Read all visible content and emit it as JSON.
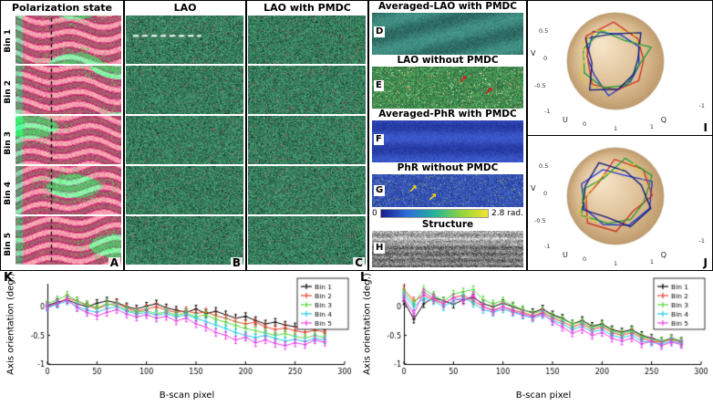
{
  "grid": {
    "columns": [
      {
        "header": "Polarization state",
        "letter": "A"
      },
      {
        "header": "LAO",
        "letter": "B"
      },
      {
        "header": "LAO with PMDC",
        "letter": "C"
      }
    ],
    "row_labels": [
      "Bin 1",
      "Bin 2",
      "Bin 3",
      "Bin 4",
      "Bin 5"
    ]
  },
  "middle": {
    "sections": [
      {
        "title": "Averaged-LAO with PMDC",
        "letter": "D"
      },
      {
        "title": "LAO without PMDC",
        "letter": "E"
      },
      {
        "title": "Averaged-PhR with PMDC",
        "letter": "F"
      },
      {
        "title": "PhR without PMDC",
        "letter": "G"
      }
    ],
    "colorbar": {
      "min_label": "0",
      "max_label": "2.8 rad."
    },
    "structure": {
      "title": "Structure",
      "letter": "H"
    }
  },
  "spheres": {
    "axis": {
      "v_label": "V",
      "u_label": "U",
      "q_label": "Q",
      "v_ticks": [
        "0.5",
        "0",
        "-0.5"
      ],
      "u_ticks": [
        "-1",
        "0",
        "1"
      ],
      "q_ticks": [
        "1",
        "-1"
      ]
    },
    "panels": [
      {
        "letter": "I"
      },
      {
        "letter": "J"
      }
    ]
  },
  "icons": {
    "arrow_ne": "↗"
  },
  "colors": {
    "sphere_fill": "#dcbd93",
    "colorbar": [
      "#1a1a8f",
      "#2e6fd8",
      "#22b39a",
      "#8fd43f",
      "#f2e430"
    ],
    "trajectories": [
      "#1434d0",
      "#cf2a1c",
      "#1e9e2e",
      "#0a1878",
      "#e6cf1e"
    ]
  },
  "chart_data": [
    {
      "type": "line",
      "letter": "K",
      "xlabel": "B-scan pixel",
      "ylabel": "Axis orientation (deg.)",
      "xlim": [
        0,
        300
      ],
      "ylim": [
        -1,
        0.4
      ],
      "xticks": [
        0,
        50,
        100,
        150,
        200,
        250,
        300
      ],
      "yticks": [
        0,
        -0.5,
        -1
      ],
      "legend_position": "top-right",
      "grid": false,
      "x": [
        0,
        10,
        20,
        30,
        40,
        50,
        60,
        70,
        80,
        90,
        100,
        110,
        120,
        130,
        140,
        150,
        160,
        170,
        180,
        190,
        200,
        210,
        220,
        230,
        240,
        250,
        260,
        270,
        280
      ],
      "series": [
        {
          "name": "Bin 1",
          "color": "#000000",
          "values": [
            0.02,
            0.08,
            0.12,
            0.05,
            0.0,
            0.06,
            0.1,
            0.07,
            0.0,
            -0.04,
            0.01,
            0.05,
            -0.02,
            -0.06,
            -0.1,
            -0.04,
            -0.12,
            -0.08,
            -0.14,
            -0.2,
            -0.17,
            -0.24,
            -0.3,
            -0.27,
            -0.32,
            -0.35,
            -0.38,
            -0.35,
            -0.4
          ]
        },
        {
          "name": "Bin 2",
          "color": "#e8402c",
          "values": [
            0.0,
            0.05,
            0.15,
            0.1,
            0.02,
            -0.04,
            0.03,
            0.06,
            -0.02,
            -0.08,
            -0.04,
            0.0,
            -0.06,
            -0.1,
            -0.07,
            -0.12,
            -0.09,
            -0.16,
            -0.2,
            -0.26,
            -0.3,
            -0.27,
            -0.35,
            -0.4,
            -0.37,
            -0.42,
            -0.45,
            -0.41,
            -0.44
          ]
        },
        {
          "name": "Bin 3",
          "color": "#52d93a",
          "values": [
            0.05,
            0.12,
            0.2,
            0.1,
            0.04,
            -0.02,
            0.05,
            0.02,
            -0.06,
            -0.1,
            -0.07,
            -0.12,
            -0.09,
            -0.15,
            -0.11,
            -0.18,
            -0.14,
            -0.22,
            -0.27,
            -0.33,
            -0.38,
            -0.42,
            -0.46,
            -0.5,
            -0.47,
            -0.52,
            -0.55,
            -0.5,
            -0.54
          ]
        },
        {
          "name": "Bin 4",
          "color": "#1ec9e8",
          "values": [
            -0.02,
            0.04,
            0.1,
            0.0,
            -0.06,
            -0.1,
            -0.03,
            0.0,
            -0.08,
            -0.13,
            -0.1,
            -0.15,
            -0.12,
            -0.18,
            -0.14,
            -0.2,
            -0.26,
            -0.32,
            -0.38,
            -0.45,
            -0.5,
            -0.54,
            -0.5,
            -0.55,
            -0.6,
            -0.57,
            -0.61,
            -0.55,
            -0.58
          ]
        },
        {
          "name": "Bin 5",
          "color": "#f03ce8",
          "values": [
            0.0,
            0.06,
            0.12,
            -0.02,
            -0.1,
            -0.16,
            -0.1,
            -0.05,
            -0.13,
            -0.18,
            -0.14,
            -0.2,
            -0.17,
            -0.25,
            -0.2,
            -0.3,
            -0.36,
            -0.45,
            -0.5,
            -0.58,
            -0.53,
            -0.63,
            -0.58,
            -0.64,
            -0.68,
            -0.63,
            -0.66,
            -0.58,
            -0.62
          ]
        }
      ]
    },
    {
      "type": "line",
      "letter": "L",
      "xlabel": "B-scan pixel",
      "ylabel": "Axis orientation (deg.)",
      "xlim": [
        0,
        300
      ],
      "ylim": [
        -1,
        0.4
      ],
      "xticks": [
        0,
        50,
        100,
        150,
        200,
        250,
        300
      ],
      "yticks": [
        0,
        -0.5,
        -1
      ],
      "legend_position": "top-right",
      "grid": false,
      "x": [
        0,
        10,
        20,
        30,
        40,
        50,
        60,
        70,
        80,
        90,
        100,
        110,
        120,
        130,
        140,
        150,
        160,
        170,
        180,
        190,
        200,
        210,
        220,
        230,
        240,
        250,
        260,
        270,
        280
      ],
      "series": [
        {
          "name": "Bin 1",
          "color": "#000000",
          "values": [
            0.1,
            -0.22,
            0.05,
            0.16,
            0.1,
            0.04,
            0.12,
            0.16,
            0.05,
            0.0,
            0.06,
            0.0,
            -0.06,
            -0.1,
            -0.04,
            -0.14,
            -0.2,
            -0.3,
            -0.24,
            -0.34,
            -0.3,
            -0.4,
            -0.44,
            -0.4,
            -0.5,
            -0.55,
            -0.6,
            -0.55,
            -0.6
          ]
        },
        {
          "name": "Bin 2",
          "color": "#e8402c",
          "values": [
            0.3,
            0.1,
            0.2,
            0.12,
            0.05,
            0.16,
            0.2,
            0.1,
            0.0,
            -0.06,
            0.0,
            -0.06,
            -0.1,
            -0.16,
            -0.1,
            -0.2,
            -0.26,
            -0.35,
            -0.3,
            -0.4,
            -0.35,
            -0.45,
            -0.5,
            -0.45,
            -0.55,
            -0.6,
            -0.62,
            -0.57,
            -0.62
          ]
        },
        {
          "name": "Bin 3",
          "color": "#52d93a",
          "values": [
            0.25,
            0.05,
            0.3,
            0.2,
            0.1,
            0.22,
            0.26,
            0.3,
            0.12,
            0.05,
            0.1,
            0.02,
            -0.05,
            -0.12,
            -0.07,
            -0.17,
            -0.22,
            -0.3,
            -0.27,
            -0.37,
            -0.32,
            -0.42,
            -0.47,
            -0.42,
            -0.52,
            -0.57,
            -0.6,
            -0.55,
            -0.6
          ]
        },
        {
          "name": "Bin 4",
          "color": "#1ec9e8",
          "values": [
            0.2,
            0.0,
            0.15,
            0.1,
            0.0,
            0.1,
            0.16,
            0.06,
            -0.05,
            -0.1,
            -0.04,
            -0.1,
            -0.15,
            -0.2,
            -0.14,
            -0.24,
            -0.3,
            -0.4,
            -0.34,
            -0.44,
            -0.4,
            -0.5,
            -0.54,
            -0.5,
            -0.6,
            -0.62,
            -0.65,
            -0.6,
            -0.64
          ]
        },
        {
          "name": "Bin 5",
          "color": "#f03ce8",
          "values": [
            0.15,
            -0.12,
            0.25,
            0.15,
            0.05,
            0.15,
            0.1,
            0.2,
            0.0,
            -0.08,
            0.0,
            -0.08,
            -0.13,
            -0.18,
            -0.12,
            -0.26,
            -0.36,
            -0.46,
            -0.4,
            -0.5,
            -0.45,
            -0.55,
            -0.6,
            -0.55,
            -0.65,
            -0.6,
            -0.68,
            -0.62,
            -0.66
          ]
        }
      ]
    }
  ]
}
